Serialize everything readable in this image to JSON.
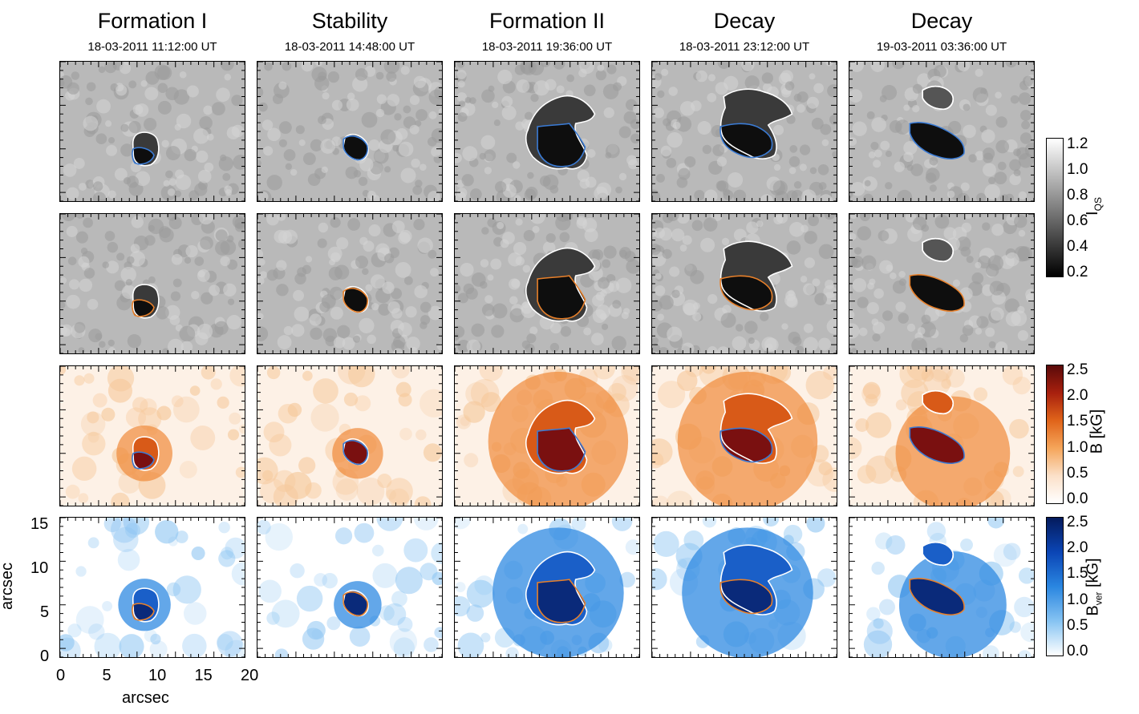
{
  "columns": [
    {
      "title": "Formation I",
      "time": "18-03-2011 11:12:00 UT"
    },
    {
      "title": "Stability",
      "time": "18-03-2011 14:48:00 UT"
    },
    {
      "title": "Formation II",
      "time": "18-03-2011 19:36:00 UT"
    },
    {
      "title": "Decay",
      "time": "18-03-2011 23:12:00 UT"
    },
    {
      "title": "Decay",
      "time": "19-03-2011 03:36:00 UT"
    }
  ],
  "rows": [
    {
      "map": "intensity",
      "inner_contour_color": "#3a7bd5"
    },
    {
      "map": "intensity",
      "inner_contour_color": "#e8802a"
    },
    {
      "map": "field_strength",
      "inner_contour_color": "#3a7bd5"
    },
    {
      "map": "vertical_field",
      "inner_contour_color": "#e8802a"
    }
  ],
  "colorbars": {
    "intensity": {
      "title_base": "I",
      "title_sub": "QS",
      "ticks": [
        "1.2",
        "1.0",
        "0.8",
        "0.6",
        "0.4",
        "0.2"
      ]
    },
    "field": {
      "title": "B [kG]",
      "ticks": [
        "2.5",
        "2.0",
        "1.5",
        "1.0",
        "0.5",
        "0.0"
      ]
    },
    "vertical": {
      "title_base": "B",
      "title_sub": "ver",
      "title_unit": " [kG]",
      "ticks": [
        "2.5",
        "2.0",
        "1.5",
        "1.0",
        "0.5",
        "0.0"
      ]
    }
  },
  "axes": {
    "xlabel": "arcsec",
    "ylabel": "arcsec",
    "xticks": [
      "0",
      "5",
      "10",
      "15",
      "20"
    ],
    "yticks": [
      "15",
      "10",
      "5",
      "0"
    ]
  },
  "colors": {
    "outer_contour": "#ffffff",
    "blue_contour": "#3a7bd5",
    "orange_contour": "#e8802a"
  }
}
